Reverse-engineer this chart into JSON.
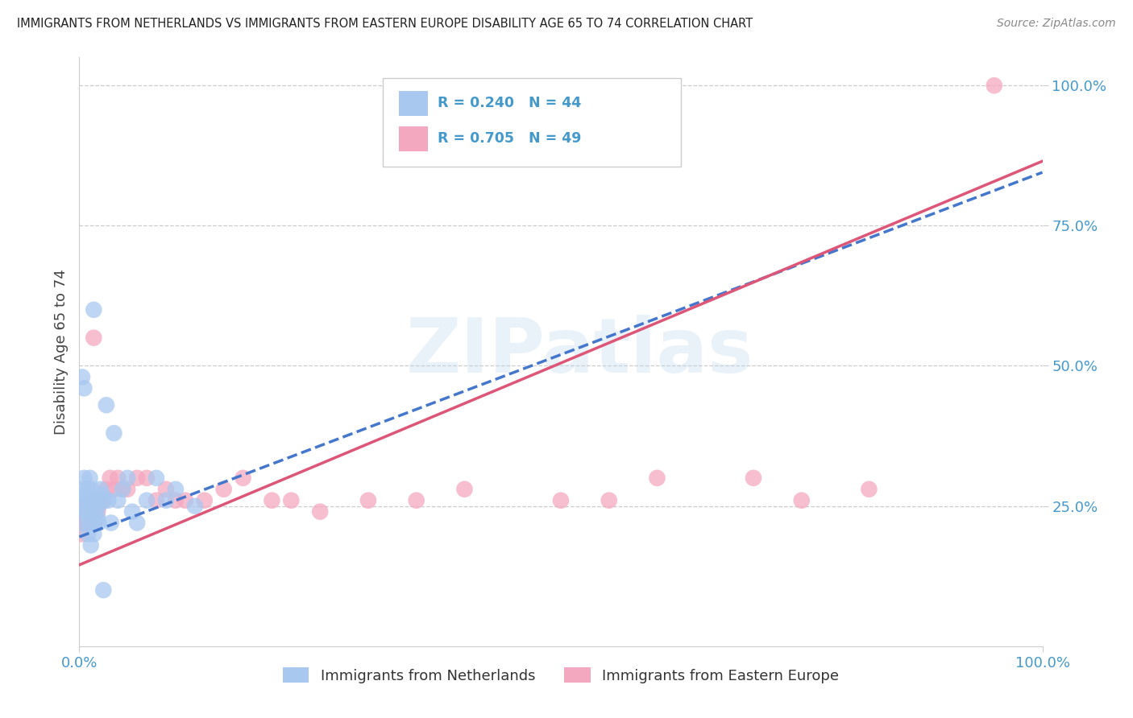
{
  "title": "IMMIGRANTS FROM NETHERLANDS VS IMMIGRANTS FROM EASTERN EUROPE DISABILITY AGE 65 TO 74 CORRELATION CHART",
  "source": "Source: ZipAtlas.com",
  "ylabel": "Disability Age 65 to 74",
  "legend1_label": "Immigrants from Netherlands",
  "legend2_label": "Immigrants from Eastern Europe",
  "r1": 0.24,
  "n1": 44,
  "r2": 0.705,
  "n2": 49,
  "color1": "#a8c8f0",
  "color2": "#f4a8c0",
  "line1_color": "#4477cc",
  "line2_color": "#dd5577",
  "watermark_text": "ZIPatlas",
  "background_color": "#ffffff",
  "grid_color": "#cccccc",
  "title_color": "#222222",
  "source_color": "#888888",
  "tick_color": "#4499cc",
  "xlim": [
    0.0,
    1.0
  ],
  "ylim": [
    0.0,
    1.05
  ],
  "yticks": [
    0.25,
    0.5,
    0.75,
    1.0
  ],
  "ytick_labels": [
    "25.0%",
    "50.0%",
    "75.0%",
    "100.0%"
  ],
  "xtick_labels": [
    "0.0%",
    "100.0%"
  ],
  "nl_line_intercept": 0.195,
  "nl_line_slope": 0.65,
  "ee_line_intercept": 0.145,
  "ee_line_slope": 0.72,
  "nl_x": [
    0.002,
    0.003,
    0.004,
    0.005,
    0.006,
    0.007,
    0.008,
    0.009,
    0.01,
    0.011,
    0.012,
    0.013,
    0.014,
    0.015,
    0.016,
    0.017,
    0.018,
    0.019,
    0.02,
    0.022,
    0.024,
    0.026,
    0.028,
    0.03,
    0.033,
    0.036,
    0.04,
    0.045,
    0.05,
    0.055,
    0.06,
    0.07,
    0.08,
    0.09,
    0.1,
    0.12,
    0.003,
    0.005,
    0.007,
    0.009,
    0.012,
    0.015,
    0.02,
    0.025
  ],
  "nl_y": [
    0.22,
    0.25,
    0.28,
    0.3,
    0.27,
    0.24,
    0.26,
    0.28,
    0.22,
    0.3,
    0.26,
    0.28,
    0.25,
    0.6,
    0.22,
    0.24,
    0.26,
    0.23,
    0.25,
    0.28,
    0.27,
    0.26,
    0.43,
    0.26,
    0.22,
    0.38,
    0.26,
    0.28,
    0.3,
    0.24,
    0.22,
    0.26,
    0.3,
    0.26,
    0.28,
    0.25,
    0.48,
    0.46,
    0.24,
    0.2,
    0.18,
    0.2,
    0.22,
    0.1
  ],
  "ee_x": [
    0.002,
    0.003,
    0.004,
    0.005,
    0.006,
    0.007,
    0.008,
    0.009,
    0.01,
    0.011,
    0.012,
    0.013,
    0.014,
    0.015,
    0.016,
    0.017,
    0.018,
    0.019,
    0.02,
    0.022,
    0.025,
    0.028,
    0.032,
    0.036,
    0.04,
    0.045,
    0.05,
    0.06,
    0.07,
    0.08,
    0.09,
    0.1,
    0.11,
    0.13,
    0.15,
    0.17,
    0.2,
    0.22,
    0.25,
    0.3,
    0.35,
    0.4,
    0.5,
    0.55,
    0.6,
    0.7,
    0.75,
    0.82,
    0.95
  ],
  "ee_y": [
    0.2,
    0.22,
    0.24,
    0.22,
    0.25,
    0.24,
    0.22,
    0.25,
    0.24,
    0.25,
    0.24,
    0.26,
    0.24,
    0.55,
    0.22,
    0.24,
    0.26,
    0.24,
    0.25,
    0.26,
    0.26,
    0.28,
    0.3,
    0.28,
    0.3,
    0.28,
    0.28,
    0.3,
    0.3,
    0.26,
    0.28,
    0.26,
    0.26,
    0.26,
    0.28,
    0.3,
    0.26,
    0.26,
    0.24,
    0.26,
    0.26,
    0.28,
    0.26,
    0.26,
    0.3,
    0.3,
    0.26,
    0.28,
    1.0
  ]
}
